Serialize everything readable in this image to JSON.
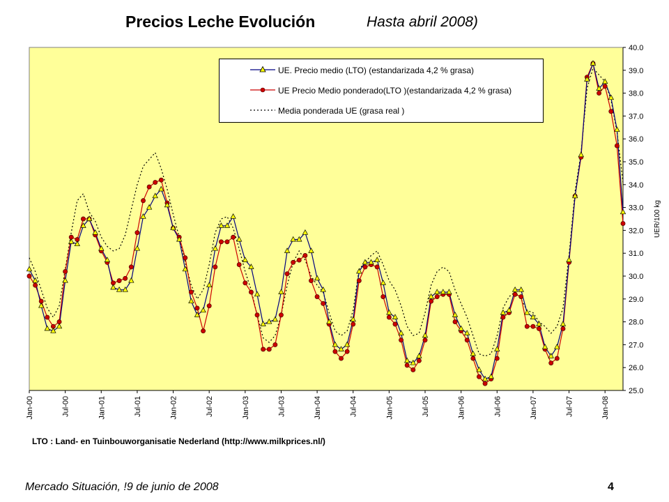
{
  "header": {
    "title": "Precios Leche Evolución",
    "subtitle": "Hasta abril 2008)"
  },
  "source_note": "LTO : Land- en Tuinbouworganisatie Nederland (http://www.milkprices.nl/)",
  "footer": {
    "text": "Mercado Situación, !9 de junio de 2008",
    "page_number": "4"
  },
  "chart_data": {
    "type": "line",
    "title": "",
    "ylabel": "UER/100 kg",
    "y_axis_position": "right",
    "ylim": [
      25.0,
      40.0
    ],
    "yticks": [
      "25.0",
      "26.0",
      "27.0",
      "28.0",
      "29.0",
      "30.0",
      "31.0",
      "32.0",
      "33.0",
      "34.0",
      "35.0",
      "36.0",
      "37.0",
      "38.0",
      "39.0",
      "40.0"
    ],
    "xtick_labels": [
      "Jan-00",
      "Jul-00",
      "Jan-01",
      "Jul-01",
      "Jan-02",
      "Jul-02",
      "Jan-03",
      "Jul-03",
      "Jan-04",
      "Jul-04",
      "Jan-05",
      "Jul-05",
      "Jan-06",
      "Jul-06",
      "Jan-07",
      "Jul-07",
      "Jan-08"
    ],
    "x_start": "Jan-00",
    "x_end": "Apr-08",
    "plot_background": "#ffff99",
    "grid": false,
    "legend_position": "top-center",
    "series": [
      {
        "name": "UE. Precio medio (LTO) (estandarizada 4,2 % grasa)",
        "color": "#000080",
        "marker": "triangle",
        "marker_fill": "#ffff00",
        "values": [
          30.3,
          29.8,
          28.7,
          27.7,
          27.6,
          27.8,
          29.8,
          31.5,
          31.4,
          32.2,
          32.5,
          31.9,
          31.2,
          30.7,
          29.5,
          29.4,
          29.4,
          29.8,
          31.2,
          32.6,
          33.0,
          33.5,
          33.8,
          33.1,
          32.1,
          31.6,
          30.3,
          28.9,
          28.3,
          28.5,
          29.6,
          31.2,
          32.2,
          32.2,
          32.6,
          31.6,
          30.7,
          30.4,
          29.2,
          27.9,
          28.0,
          28.1,
          29.3,
          31.1,
          31.6,
          31.6,
          31.9,
          31.1,
          29.9,
          29.4,
          28.0,
          27.0,
          26.8,
          27.0,
          28.1,
          30.2,
          30.6,
          30.6,
          30.7,
          29.7,
          28.4,
          28.2,
          27.5,
          26.3,
          26.2,
          26.5,
          27.4,
          29.1,
          29.3,
          29.3,
          29.3,
          28.3,
          27.7,
          27.5,
          26.6,
          25.9,
          25.5,
          25.6,
          26.8,
          28.4,
          28.5,
          29.4,
          29.4,
          28.4,
          28.2,
          27.9,
          26.9,
          26.5,
          26.9,
          27.9,
          30.7,
          33.5,
          35.3,
          38.6,
          39.3,
          38.2,
          38.5,
          37.8,
          36.4,
          32.8
        ]
      },
      {
        "name": "UE  Precio Medio ponderado(LTO )(estandarizada 4,2 % grasa)",
        "color": "#cc0000",
        "marker": "circle",
        "marker_fill": "#cc0000",
        "values": [
          30.0,
          29.6,
          28.9,
          28.2,
          27.8,
          28.0,
          30.2,
          31.7,
          31.6,
          32.5,
          32.5,
          31.8,
          31.1,
          30.6,
          29.7,
          29.8,
          29.9,
          30.4,
          31.9,
          33.3,
          33.9,
          34.1,
          34.2,
          33.2,
          32.1,
          31.7,
          30.8,
          29.3,
          28.6,
          27.6,
          28.7,
          30.4,
          31.5,
          31.5,
          31.7,
          30.5,
          29.7,
          29.3,
          28.3,
          26.8,
          26.8,
          27.0,
          28.3,
          30.1,
          30.6,
          30.7,
          30.9,
          29.8,
          29.1,
          28.8,
          27.9,
          26.7,
          26.4,
          26.7,
          27.9,
          29.8,
          30.4,
          30.5,
          30.4,
          29.1,
          28.2,
          27.9,
          27.2,
          26.1,
          25.9,
          26.3,
          27.2,
          28.9,
          29.1,
          29.2,
          29.2,
          28.0,
          27.6,
          27.2,
          26.4,
          25.6,
          25.3,
          25.5,
          26.4,
          28.2,
          28.4,
          29.2,
          29.1,
          27.8,
          27.8,
          27.7,
          26.8,
          26.2,
          26.4,
          27.7,
          30.6,
          33.5,
          35.2,
          38.7,
          39.3,
          38.0,
          38.3,
          37.2,
          35.7,
          32.3
        ]
      },
      {
        "name": "Media ponderada UE (grasa real )",
        "color": "#000000",
        "style": "dotted",
        "values": [
          30.8,
          30.2,
          29.4,
          28.6,
          28.2,
          28.7,
          30.3,
          31.9,
          33.3,
          33.6,
          32.8,
          32.4,
          31.7,
          31.3,
          31.1,
          31.2,
          31.8,
          32.9,
          34.0,
          34.8,
          35.1,
          35.4,
          34.7,
          33.8,
          32.7,
          31.7,
          30.6,
          29.6,
          29.0,
          29.4,
          30.5,
          31.9,
          32.5,
          32.6,
          32.1,
          31.2,
          30.2,
          29.4,
          28.3,
          27.3,
          27.1,
          27.4,
          28.3,
          29.6,
          30.6,
          31.1,
          30.7,
          30.0,
          29.6,
          29.3,
          28.4,
          27.6,
          27.4,
          27.6,
          28.5,
          30.3,
          30.6,
          30.9,
          31.1,
          30.5,
          29.8,
          29.4,
          28.7,
          27.8,
          27.4,
          27.5,
          28.4,
          29.6,
          30.2,
          30.4,
          30.2,
          29.4,
          28.8,
          28.2,
          27.4,
          26.6,
          26.5,
          26.6,
          27.4,
          28.6,
          29.1,
          29.3,
          29.0,
          28.5,
          28.4,
          28.0,
          27.8,
          27.5,
          27.8,
          28.6,
          30.9,
          33.7,
          35.4,
          38.2,
          39.1,
          38.8,
          38.5,
          37.7,
          36.3,
          34.1
        ]
      }
    ]
  }
}
